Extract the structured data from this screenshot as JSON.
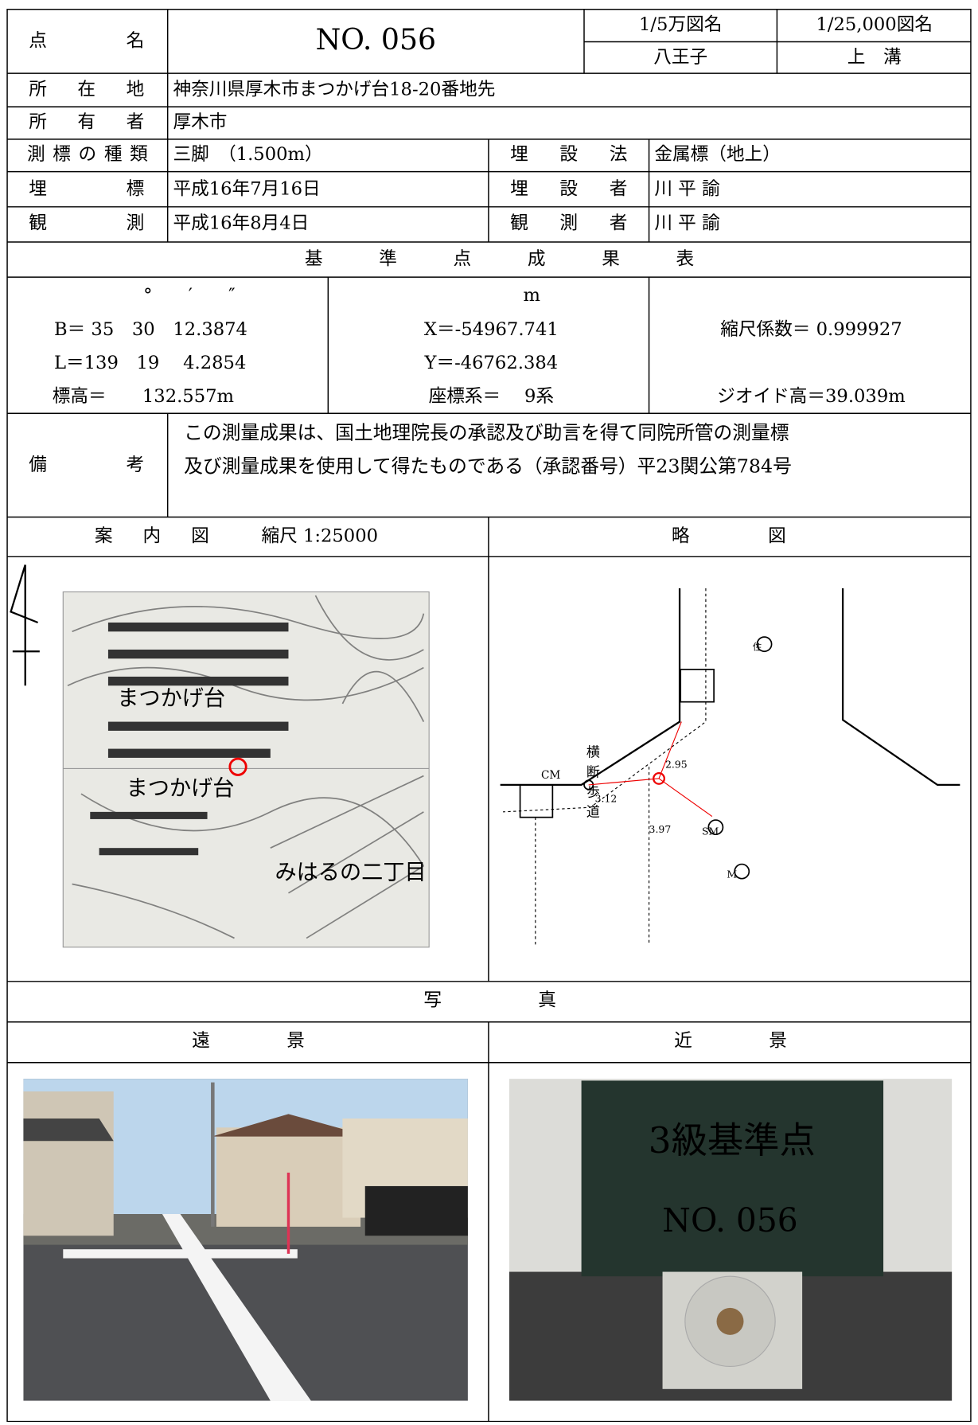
{
  "point": {
    "label": "点名",
    "name": "NO. 056"
  },
  "maps": {
    "label_50k": "1/5万図名",
    "label_25k": "1/25,000図名",
    "name_50k": "八王子",
    "name_25k": "上　溝"
  },
  "location": {
    "label": "所在地",
    "value": "神奈川県厚木市まつかげ台18-20番地先"
  },
  "owner": {
    "label": "所有者",
    "value": "厚木市"
  },
  "marker_type": {
    "label": "測標の種類",
    "value": "三脚　（1.500m）"
  },
  "burial_method": {
    "label": "埋設法",
    "value": "金属標（地上）"
  },
  "burial": {
    "label": "埋標",
    "value": "平成16年7月16日"
  },
  "burier": {
    "label": "埋設者",
    "value": "川 平 諭"
  },
  "observation": {
    "label": "観測",
    "value": "平成16年8月4日"
  },
  "observer": {
    "label": "観測者",
    "value": "川 平 諭"
  },
  "results": {
    "title": "基準点成果表",
    "angle_units": "°　　′　　″",
    "B": "B＝ 35　30　12.3874",
    "L": "L＝139　19　 4.2854",
    "height": "標高＝　　132.557m",
    "xy_unit": "m",
    "X": "X＝-54967.741",
    "Y": "Y＝-46762.384",
    "system": "座標系＝　 9系",
    "scale_factor": "縮尺係数＝ 0.999927",
    "geoid": "ジオイド高＝39.039m"
  },
  "remarks": {
    "label": "備考",
    "lines": [
      "この測量成果は、国土地理院長の承認及び助言を得て同院所管の測量標",
      "及び測量成果を使用して得たものである（承認番号）平23関公第784号"
    ]
  },
  "guide_map": {
    "label": "案内図",
    "scale": "縮尺 1:25000",
    "place_1": "まつかげ台",
    "place_2": "まつかげ台",
    "place_3": "みはるの二丁目"
  },
  "sketch": {
    "label": "略図",
    "cm": "CM",
    "crosswalk": [
      "横",
      "断",
      "歩",
      "道"
    ],
    "d1": "2.95",
    "d2": "3.12",
    "d3": "3.97",
    "sm": "SM",
    "m": "M",
    "house": "住"
  },
  "photos": {
    "label": "写真",
    "far": "遠景",
    "near": "近景",
    "board_1": "3級基準点",
    "board_2": "NO. 056"
  }
}
